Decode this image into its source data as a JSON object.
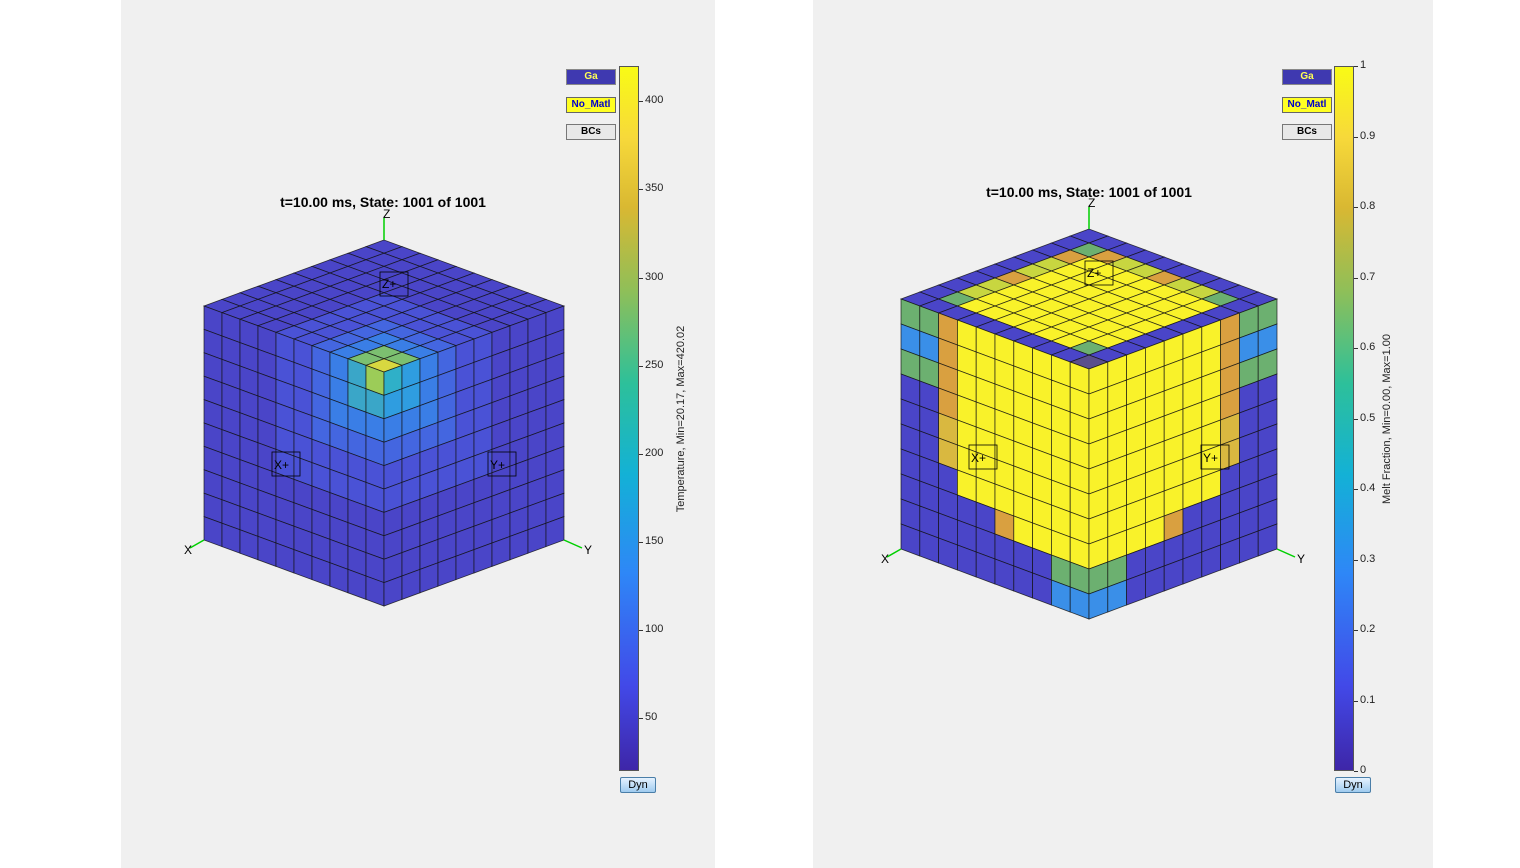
{
  "left": {
    "title": "t=10.00 ms, State: 1001 of 1001",
    "legend": {
      "mat": "Ga",
      "nomat": "No_Matl",
      "bcs": "BCs"
    },
    "colorbar_label": "Temperature, Min=20.17, Max=420.02",
    "ticks": [
      "400",
      "350",
      "300",
      "250",
      "200",
      "150",
      "100",
      "50"
    ],
    "dyn": "Dyn",
    "axes": {
      "x": "X",
      "y": "Y",
      "z": "Z"
    },
    "face_labels": {
      "xplus": "X+",
      "yplus": "Y+",
      "zplus": "Z+"
    }
  },
  "right": {
    "title": "t=10.00 ms, State: 1001 of 1001",
    "legend": {
      "mat": "Ga",
      "nomat": "No_Matl",
      "bcs": "BCs"
    },
    "colorbar_label": "Melt Fraction, Min=0.00, Max=1.00",
    "ticks": [
      "1",
      "0.9",
      "0.8",
      "0.7",
      "0.6",
      "0.5",
      "0.4",
      "0.3",
      "0.2",
      "0.1",
      "0"
    ],
    "dyn": "Dyn",
    "axes": {
      "x": "X",
      "y": "Y",
      "z": "Z"
    },
    "face_labels": {
      "xplus": "X+",
      "yplus": "Y+",
      "zplus": "Z+"
    }
  },
  "colors": {
    "panel_bg": "#f0f0f0",
    "cube_base": "#4a45c8",
    "hot_yellow": "#f9f22a",
    "mid_green": "#86c064",
    "blue_light": "#3a8fe8",
    "orange": "#d9a040",
    "axis_green": "#00d000"
  }
}
